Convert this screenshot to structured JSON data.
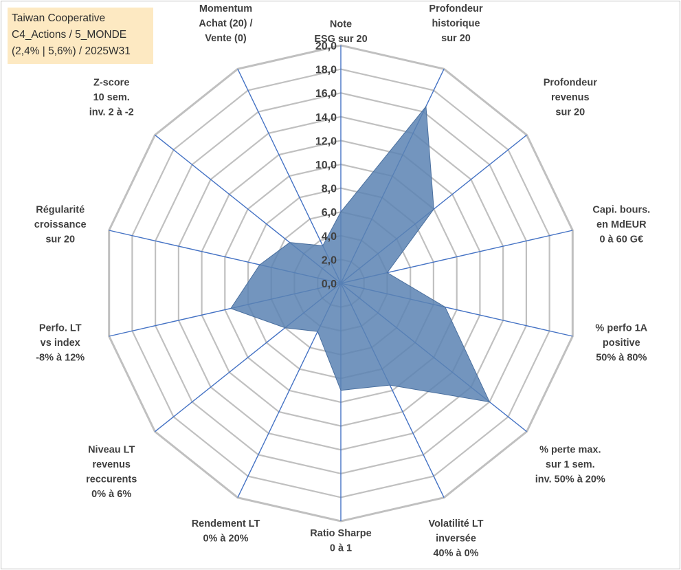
{
  "legend": {
    "line1": "Taiwan Cooperative",
    "line2": "C4_Actions / 5_MONDE",
    "line3": "(2,4% | 5,6%) / 2025W31"
  },
  "colors": {
    "fill": "#5b82b3",
    "spoke": "#4472c4",
    "grid": "#c0c0c0",
    "label": "#404040",
    "legend_bg": "#fde9c2"
  },
  "chart_data": {
    "type": "radar",
    "rmin": 0,
    "rmax": 20,
    "tick_step": 2,
    "tick_labels": [
      "0,0",
      "2,0",
      "4,0",
      "6,0",
      "8,0",
      "10,0",
      "12,0",
      "14,0",
      "16,0",
      "18,0",
      "20,0"
    ],
    "grid": true,
    "axes": [
      {
        "label": [
          "Note",
          "ESG sur 20"
        ],
        "value": 6.0
      },
      {
        "label": [
          "Profondeur",
          "historique",
          "sur 20"
        ],
        "value": 16.5
      },
      {
        "label": [
          "Profondeur",
          "revenus",
          "sur 20"
        ],
        "value": 10.0
      },
      {
        "label": [
          "Capi. bours.",
          "en MdEUR",
          "0 à 60 G€"
        ],
        "value": 4.0
      },
      {
        "label": [
          "% perfo 1A",
          "positive",
          "50% à 80%"
        ],
        "value": 9.0
      },
      {
        "label": [
          "% perte max.",
          "sur 1 sem.",
          "inv. 50% à 20%"
        ],
        "value": 16.0
      },
      {
        "label": [
          "Volatilité LT",
          "inversée",
          "40% à 0%"
        ],
        "value": 9.5
      },
      {
        "label": [
          "Ratio Sharpe",
          "0 à 1"
        ],
        "value": 9.0
      },
      {
        "label": [
          "Rendement LT",
          "0% à 20%"
        ],
        "value": 4.5
      },
      {
        "label": [
          "Niveau LT",
          "revenus",
          "reccurents",
          "0% à 6%"
        ],
        "value": 6.0
      },
      {
        "label": [
          "Perfo. LT",
          "vs index",
          "-8% à 12%"
        ],
        "value": 9.5
      },
      {
        "label": [
          "Régularité",
          "croissance",
          "sur 20"
        ],
        "value": 7.0
      },
      {
        "label": [
          "Z-score",
          "10 sem.",
          "inv. 2 à -2"
        ],
        "value": 5.5
      },
      {
        "label": [
          "Momentum",
          "Achat (20) /",
          "Vente (0)"
        ],
        "value": 3.5
      }
    ]
  }
}
